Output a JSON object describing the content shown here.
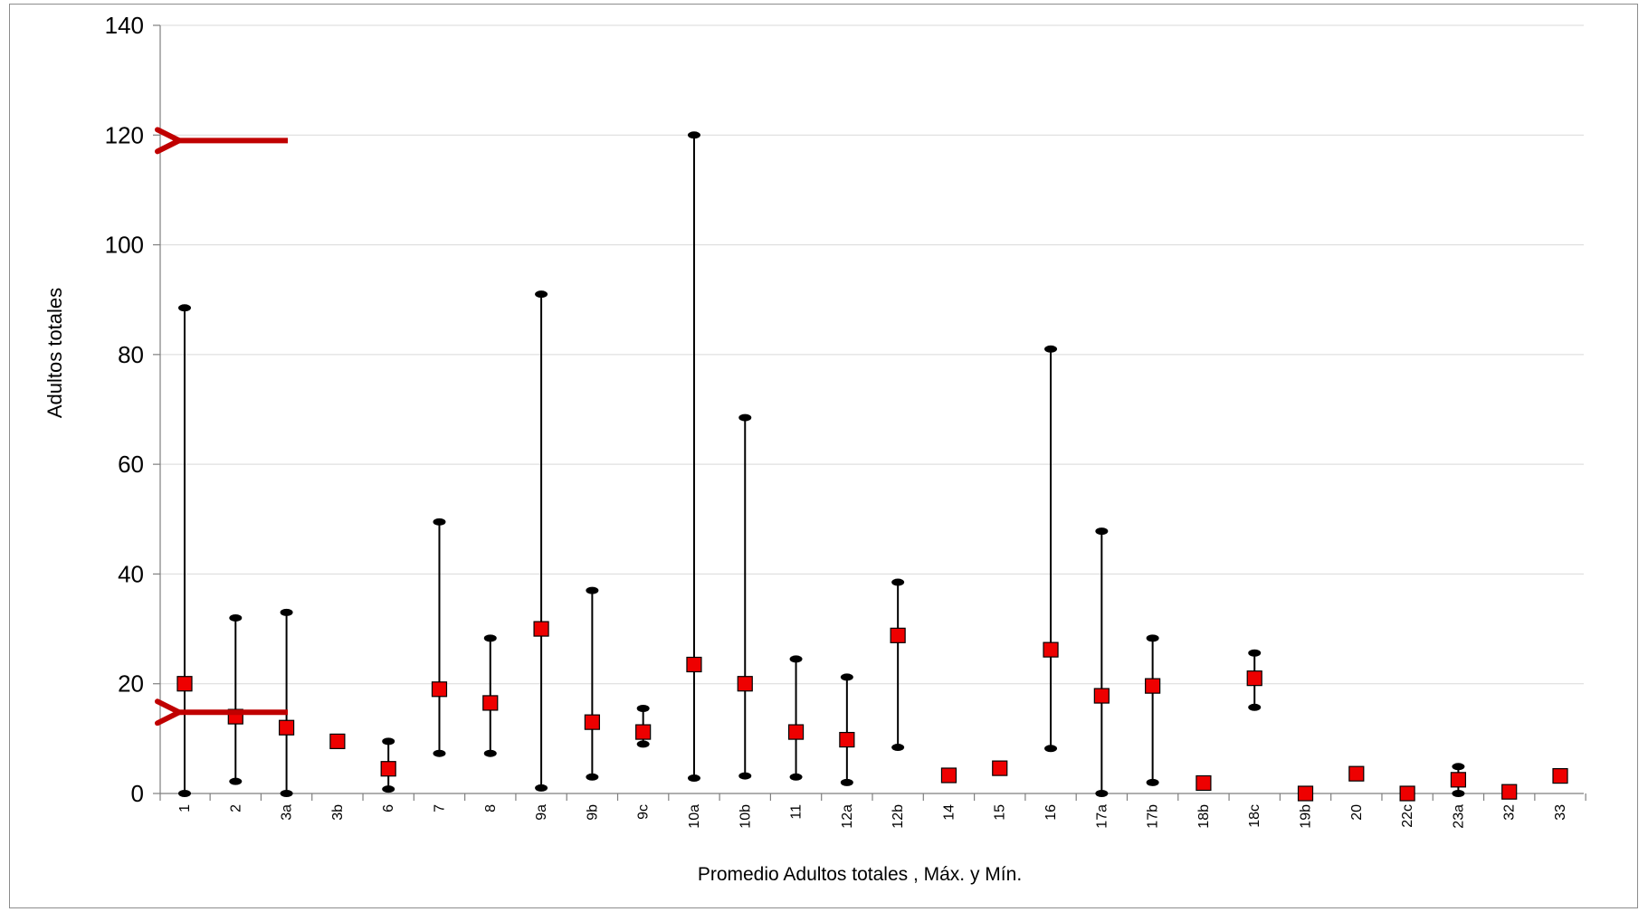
{
  "chart_data": {
    "type": "scatter",
    "xlabel": "Promedio  Adultos totales , Máx. y Mín.",
    "ylabel": "Adultos totales",
    "ylim": [
      0,
      140
    ],
    "yticks": [
      0,
      20,
      40,
      60,
      80,
      100,
      120,
      140
    ],
    "grid": true,
    "categories": [
      "1",
      "2",
      "3a",
      "3b",
      "6",
      "7",
      "8",
      "9a",
      "9b",
      "9c",
      "10a",
      "10b",
      "11",
      "12a",
      "12b",
      "14",
      "15",
      "16",
      "17a",
      "17b",
      "18b",
      "18c",
      "19b",
      "20",
      "22c",
      "23a",
      "32",
      "33"
    ],
    "series": [
      {
        "values": [
          20,
          14,
          12,
          9.5,
          4.5,
          19,
          16.5,
          30,
          13,
          11.2,
          23.5,
          20,
          11.2,
          9.8,
          28.8,
          3.3,
          4.6,
          26.2,
          17.8,
          19.6,
          1.9,
          21,
          0,
          3.6,
          0,
          2.5,
          0.3,
          3.2
        ]
      },
      {
        "values": [
          88.5,
          32,
          33,
          null,
          9.5,
          49.5,
          28.3,
          91,
          37,
          15.5,
          120,
          68.5,
          24.5,
          21.2,
          38.5,
          null,
          null,
          81,
          47.8,
          28.3,
          null,
          25.6,
          null,
          null,
          null,
          4.9,
          null,
          null
        ]
      },
      {
        "values": [
          0,
          2.2,
          0,
          null,
          0.8,
          7.3,
          7.3,
          1,
          3,
          9,
          2.8,
          3.2,
          3,
          2,
          8.4,
          null,
          null,
          8.2,
          0,
          2,
          null,
          15.7,
          null,
          null,
          null,
          0,
          null,
          null
        ]
      }
    ],
    "colors": {
      "mean": "#ee0000",
      "range": "#000000",
      "arrow": "#c00000",
      "grid": "#d9d9d9"
    },
    "annotations": [
      {
        "type": "arrow",
        "direction": "left",
        "y": 119
      },
      {
        "type": "arrow",
        "direction": "left",
        "y": 14.8
      }
    ]
  }
}
